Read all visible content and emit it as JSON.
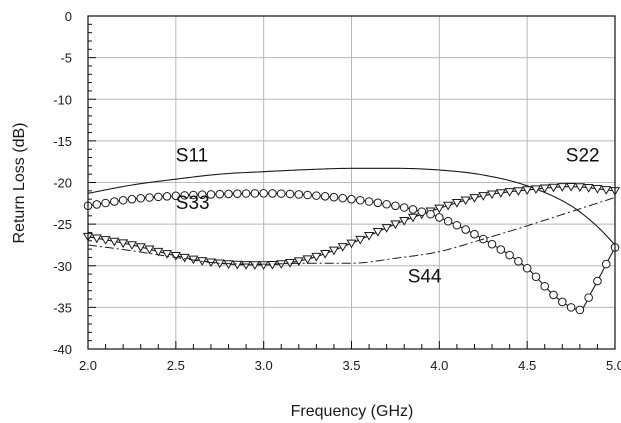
{
  "chart_data": {
    "type": "line",
    "xlabel": "Frequency (GHz)",
    "ylabel": "Return Loss (dB)",
    "xlim": [
      2.0,
      5.0
    ],
    "ylim": [
      -40,
      0
    ],
    "xticks": [
      2.0,
      2.5,
      3.0,
      3.5,
      4.0,
      4.5,
      5.0
    ],
    "xtick_labels": [
      "2.0",
      "2.5",
      "3.0",
      "3.5",
      "4.0",
      "4.5",
      "5.0"
    ],
    "yticks": [
      0,
      -5,
      -10,
      -15,
      -20,
      -25,
      -30,
      -35,
      -40
    ],
    "ytick_labels": [
      "0",
      "-5",
      "-10",
      "-15",
      "-20",
      "-25",
      "-30",
      "-35",
      "-40"
    ],
    "grid": true,
    "series": [
      {
        "name": "S11",
        "style": "solid",
        "x": [
          2.0,
          2.25,
          2.5,
          2.75,
          3.0,
          3.25,
          3.5,
          3.75,
          4.0,
          4.25,
          4.5,
          4.75,
          4.9,
          5.0
        ],
        "y": [
          -21.3,
          -20.3,
          -19.6,
          -19.0,
          -18.7,
          -18.45,
          -18.3,
          -18.3,
          -18.5,
          -19.1,
          -20.4,
          -22.8,
          -25.3,
          -27.5
        ]
      },
      {
        "name": "S22",
        "style": "triangle-down-markers",
        "x": [
          2.0,
          2.25,
          2.5,
          2.75,
          3.0,
          3.25,
          3.5,
          3.75,
          4.0,
          4.25,
          4.5,
          4.75,
          5.0
        ],
        "y": [
          -26.5,
          -27.5,
          -28.8,
          -29.7,
          -29.9,
          -29.2,
          -27.3,
          -25.0,
          -23.1,
          -21.6,
          -20.9,
          -20.5,
          -21.0
        ]
      },
      {
        "name": "S33",
        "style": "circle-markers",
        "x": [
          2.0,
          2.25,
          2.5,
          2.75,
          3.0,
          3.25,
          3.5,
          3.75,
          3.9,
          4.0,
          4.25,
          4.5,
          4.65,
          4.75,
          4.8,
          4.87,
          4.95,
          5.0
        ],
        "y": [
          -22.8,
          -22.0,
          -21.6,
          -21.4,
          -21.3,
          -21.5,
          -22.0,
          -22.8,
          -23.5,
          -24.2,
          -26.8,
          -30.3,
          -33.5,
          -35.0,
          -35.3,
          -33.0,
          -29.8,
          -27.8
        ]
      },
      {
        "name": "S44",
        "style": "dash-dot",
        "x": [
          2.0,
          2.25,
          2.5,
          2.75,
          3.0,
          3.25,
          3.5,
          3.75,
          4.0,
          4.25,
          4.5,
          4.75,
          5.0
        ],
        "y": [
          -27.5,
          -28.2,
          -29.0,
          -29.7,
          -29.8,
          -29.7,
          -29.7,
          -29.1,
          -28.3,
          -26.8,
          -25.2,
          -23.5,
          -21.8
        ]
      }
    ],
    "annotations": [
      {
        "text": "S11",
        "x": 2.5,
        "y": -17.5
      },
      {
        "text": "S22",
        "x": 4.72,
        "y": -17.5
      },
      {
        "text": "S33",
        "x": 2.5,
        "y": -23.2
      },
      {
        "text": "S44",
        "x": 3.82,
        "y": -32.0
      }
    ]
  }
}
